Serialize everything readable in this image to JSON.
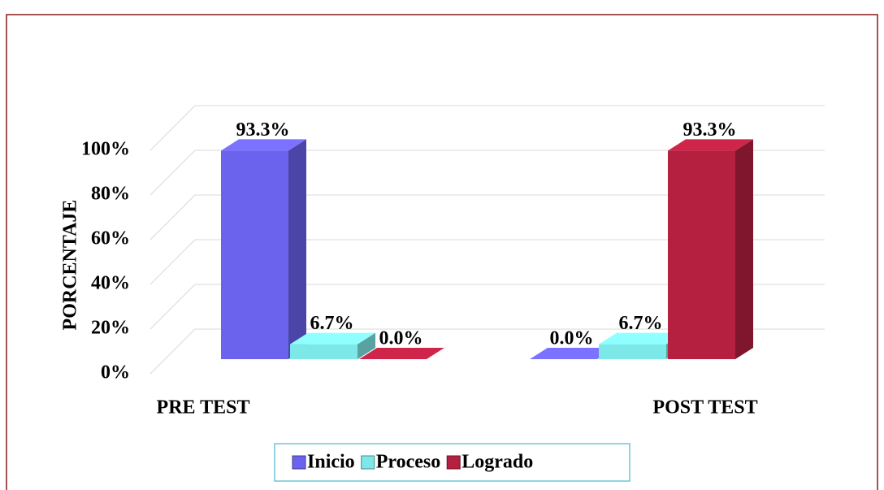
{
  "chart_data": {
    "type": "bar3d",
    "y_label": "PORCENTAJE",
    "categories": [
      "PRE TEST",
      "POST TEST"
    ],
    "series": [
      {
        "name": "Inicio",
        "color": "#6b63ee",
        "values": [
          93.3,
          0
        ],
        "value_labels": [
          "93.3%",
          "0.0%"
        ]
      },
      {
        "name": "Proceso",
        "color": "#7de8e8",
        "values": [
          6.7,
          6.7
        ],
        "value_labels": [
          "6.7%",
          "6.7%"
        ]
      },
      {
        "name": "Logrado",
        "color": "#b52040",
        "values": [
          0,
          93.3
        ],
        "value_labels": [
          "0.0%",
          "93.3%"
        ]
      }
    ],
    "ylim": [
      0,
      100
    ],
    "yticks": [
      {
        "value": 0,
        "label": "0%"
      },
      {
        "value": 20,
        "label": "20%"
      },
      {
        "value": 40,
        "label": "40%"
      },
      {
        "value": 60,
        "label": "60%"
      },
      {
        "value": 80,
        "label": "80%"
      },
      {
        "value": 100,
        "label": "100%"
      }
    ],
    "grid": true
  }
}
